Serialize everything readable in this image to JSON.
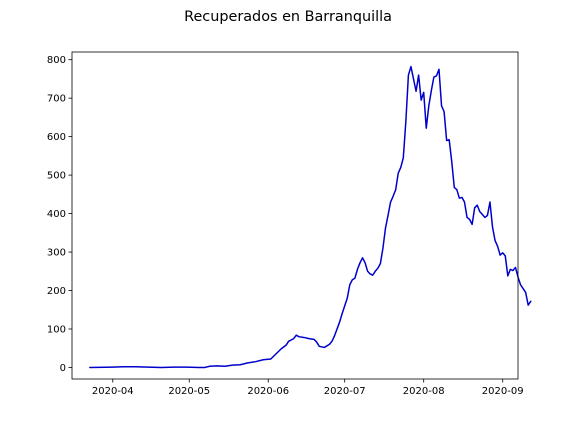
{
  "chart_data": {
    "type": "line",
    "title": "Recuperados en Barranquilla",
    "xlabel": "",
    "ylabel": "",
    "grid": false,
    "x_axis_type": "date",
    "xlim": [
      "2020-03-16",
      "2020-09-07"
    ],
    "ylim": [
      -30,
      820
    ],
    "x_tick_labels": [
      "2020-04",
      "2020-05",
      "2020-06",
      "2020-07",
      "2020-08",
      "2020-09"
    ],
    "y_tick_labels": [
      "0",
      "100",
      "200",
      "300",
      "400",
      "500",
      "600",
      "700",
      "800"
    ],
    "series": [
      {
        "color": "#0000cc",
        "points": [
          [
            "2020-03-23",
            0
          ],
          [
            "2020-04-01",
            1
          ],
          [
            "2020-04-05",
            2
          ],
          [
            "2020-04-10",
            2
          ],
          [
            "2020-04-15",
            1
          ],
          [
            "2020-04-20",
            0
          ],
          [
            "2020-04-25",
            1
          ],
          [
            "2020-04-30",
            1
          ],
          [
            "2020-05-05",
            0
          ],
          [
            "2020-05-07",
            0
          ],
          [
            "2020-05-09",
            3
          ],
          [
            "2020-05-12",
            4
          ],
          [
            "2020-05-15",
            3
          ],
          [
            "2020-05-18",
            6
          ],
          [
            "2020-05-21",
            7
          ],
          [
            "2020-05-24",
            12
          ],
          [
            "2020-05-27",
            15
          ],
          [
            "2020-05-30",
            20
          ],
          [
            "2020-06-02",
            22
          ],
          [
            "2020-06-04",
            35
          ],
          [
            "2020-06-06",
            48
          ],
          [
            "2020-06-08",
            58
          ],
          [
            "2020-06-09",
            68
          ],
          [
            "2020-06-11",
            75
          ],
          [
            "2020-06-12",
            84
          ],
          [
            "2020-06-13",
            80
          ],
          [
            "2020-06-15",
            78
          ],
          [
            "2020-06-17",
            75
          ],
          [
            "2020-06-19",
            73
          ],
          [
            "2020-06-20",
            66
          ],
          [
            "2020-06-21",
            55
          ],
          [
            "2020-06-23",
            52
          ],
          [
            "2020-06-25",
            60
          ],
          [
            "2020-06-26",
            68
          ],
          [
            "2020-06-27",
            82
          ],
          [
            "2020-06-28",
            100
          ],
          [
            "2020-06-29",
            118
          ],
          [
            "2020-06-30",
            140
          ],
          [
            "2020-07-01",
            160
          ],
          [
            "2020-07-02",
            180
          ],
          [
            "2020-07-03",
            215
          ],
          [
            "2020-07-04",
            228
          ],
          [
            "2020-07-05",
            232
          ],
          [
            "2020-07-06",
            255
          ],
          [
            "2020-07-07",
            272
          ],
          [
            "2020-07-08",
            285
          ],
          [
            "2020-07-09",
            272
          ],
          [
            "2020-07-10",
            250
          ],
          [
            "2020-07-11",
            243
          ],
          [
            "2020-07-12",
            240
          ],
          [
            "2020-07-13",
            250
          ],
          [
            "2020-07-14",
            258
          ],
          [
            "2020-07-15",
            270
          ],
          [
            "2020-07-16",
            310
          ],
          [
            "2020-07-17",
            362
          ],
          [
            "2020-07-18",
            395
          ],
          [
            "2020-07-19",
            430
          ],
          [
            "2020-07-20",
            445
          ],
          [
            "2020-07-21",
            462
          ],
          [
            "2020-07-22",
            505
          ],
          [
            "2020-07-23",
            520
          ],
          [
            "2020-07-24",
            545
          ],
          [
            "2020-07-25",
            640
          ],
          [
            "2020-07-26",
            760
          ],
          [
            "2020-07-27",
            782
          ],
          [
            "2020-07-28",
            750
          ],
          [
            "2020-07-29",
            718
          ],
          [
            "2020-07-30",
            760
          ],
          [
            "2020-07-31",
            695
          ],
          [
            "2020-08-01",
            715
          ],
          [
            "2020-08-02",
            622
          ],
          [
            "2020-08-03",
            680
          ],
          [
            "2020-08-04",
            720
          ],
          [
            "2020-08-05",
            755
          ],
          [
            "2020-08-06",
            758
          ],
          [
            "2020-08-07",
            775
          ],
          [
            "2020-08-08",
            680
          ],
          [
            "2020-08-09",
            665
          ],
          [
            "2020-08-10",
            590
          ],
          [
            "2020-08-11",
            592
          ],
          [
            "2020-08-12",
            535
          ],
          [
            "2020-08-13",
            468
          ],
          [
            "2020-08-14",
            462
          ],
          [
            "2020-08-15",
            440
          ],
          [
            "2020-08-16",
            442
          ],
          [
            "2020-08-17",
            430
          ],
          [
            "2020-08-18",
            390
          ],
          [
            "2020-08-19",
            385
          ],
          [
            "2020-08-20",
            372
          ],
          [
            "2020-08-21",
            415
          ],
          [
            "2020-08-22",
            422
          ],
          [
            "2020-08-23",
            405
          ],
          [
            "2020-08-24",
            398
          ],
          [
            "2020-08-25",
            390
          ],
          [
            "2020-08-26",
            395
          ],
          [
            "2020-08-27",
            430
          ],
          [
            "2020-08-28",
            365
          ],
          [
            "2020-08-29",
            330
          ],
          [
            "2020-08-30",
            315
          ],
          [
            "2020-08-31",
            292
          ],
          [
            "2020-09-01",
            298
          ],
          [
            "2020-09-02",
            290
          ],
          [
            "2020-09-03",
            238
          ],
          [
            "2020-09-04",
            255
          ],
          [
            "2020-09-05",
            252
          ],
          [
            "2020-09-06",
            260
          ],
          [
            "2020-09-07",
            235
          ],
          [
            "2020-09-08",
            215
          ],
          [
            "2020-09-09",
            205
          ],
          [
            "2020-09-10",
            195
          ],
          [
            "2020-09-11",
            162
          ],
          [
            "2020-09-12",
            172
          ]
        ]
      }
    ]
  }
}
